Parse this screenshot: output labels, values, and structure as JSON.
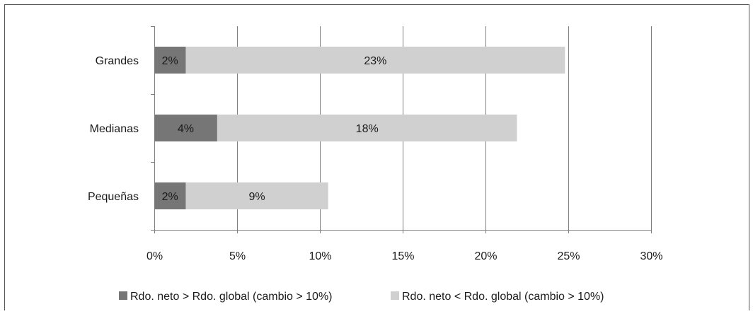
{
  "chart_data": {
    "type": "bar",
    "orientation": "horizontal",
    "stacked": true,
    "categories": [
      "Grandes",
      "Medianas",
      "Pequeñas"
    ],
    "series": [
      {
        "name": "Rdo. neto > Rdo. global (cambio > 10%)",
        "values": [
          1.9,
          3.8,
          1.9
        ],
        "labels": [
          "2%",
          "4%",
          "2%"
        ],
        "color": "#767676"
      },
      {
        "name": "Rdo. neto < Rdo. global (cambio > 10%)",
        "values": [
          22.9,
          18.1,
          8.6
        ],
        "labels": [
          "23%",
          "18%",
          "9%"
        ],
        "color": "#d0d0d0"
      }
    ],
    "xticks": [
      "0%",
      "5%",
      "10%",
      "15%",
      "20%",
      "25%",
      "30%"
    ],
    "xlim": [
      0,
      30
    ],
    "grid": true,
    "legend": "bottom",
    "title": "",
    "xlabel": "",
    "ylabel": ""
  },
  "colors": {
    "frame": "#555555",
    "grid": "#7f7f7f",
    "axis": "#7f7f7f",
    "text": "#1a1a1a"
  }
}
